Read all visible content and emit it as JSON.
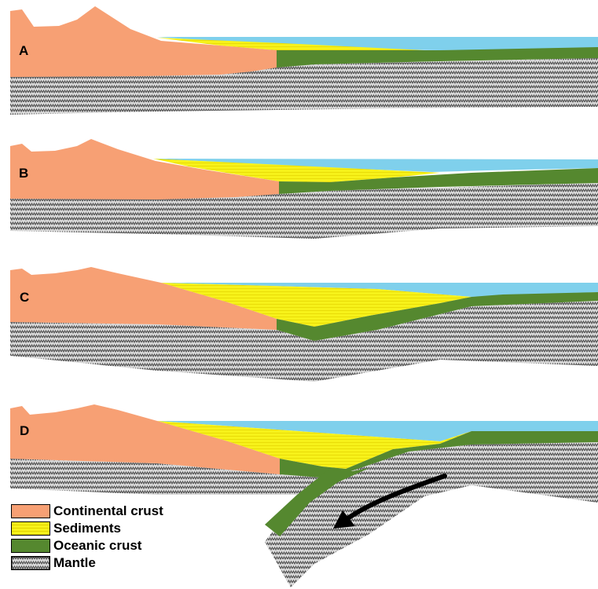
{
  "panels": [
    {
      "label": "A"
    },
    {
      "label": "B"
    },
    {
      "label": "C"
    },
    {
      "label": "D"
    }
  ],
  "legend": [
    {
      "label": "Continental crust",
      "color": "#f7a074"
    },
    {
      "label": "Sediments",
      "color": "#f7f21a"
    },
    {
      "label": "Oceanic crust",
      "color": "#55882f"
    },
    {
      "label": "Mantle",
      "color": "#c8c8c8"
    }
  ],
  "colors": {
    "continental": "#f7a074",
    "sediment": "#f7f21a",
    "sediment_line": "#e0d400",
    "ocean_water": "#7fd0ec",
    "oceanic_crust": "#55882f",
    "mantle_bg": "#d9d9d9",
    "mantle_mark": "#4a4a4a",
    "arrow": "#000000"
  }
}
